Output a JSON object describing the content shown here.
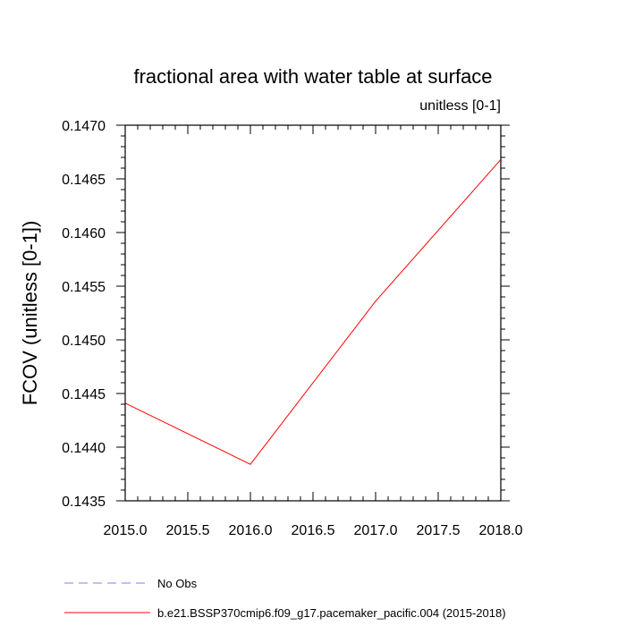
{
  "chart_data": {
    "type": "line",
    "title": "fractional area with water table at surface",
    "subtitle": "unitless [0-1]",
    "ylabel": "FCOV  (unitless [0-1])",
    "xlabel": "",
    "xlim": [
      2015.0,
      2018.0
    ],
    "ylim": [
      0.1435,
      0.147
    ],
    "x_ticks": [
      "2015.0",
      "2015.5",
      "2016.0",
      "2016.5",
      "2017.0",
      "2017.5",
      "2018.0"
    ],
    "y_ticks": [
      "0.1435",
      "0.1440",
      "0.1445",
      "0.1450",
      "0.1455",
      "0.1460",
      "0.1465",
      "0.1470"
    ],
    "grid": false,
    "legend_position": "bottom",
    "series": [
      {
        "name": "b.e21.BSSP370cmip6.f09_g17.pacemaker_pacific.004 (2015-2018)",
        "color": "#ff0000",
        "x": [
          2015.0,
          2016.0,
          2017.0,
          2018.0
        ],
        "y": [
          0.14441,
          0.14384,
          0.14536,
          0.14668
        ]
      }
    ],
    "legend": [
      {
        "label": "No Obs",
        "color": "#7f7fff",
        "dash": true
      },
      {
        "label": "b.e21.BSSP370cmip6.f09_g17.pacemaker_pacific.004 (2015-2018)",
        "color": "#ff0000",
        "dash": false
      }
    ]
  }
}
